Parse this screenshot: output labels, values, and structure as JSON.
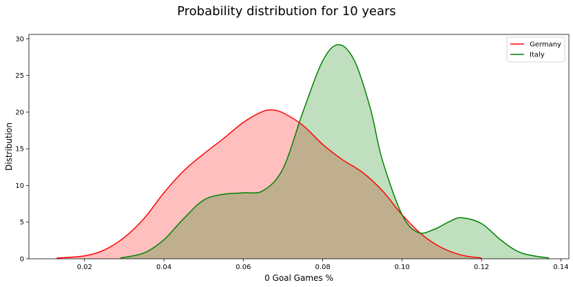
{
  "chart_data": {
    "type": "area",
    "title": "Probability distribution for 10 years",
    "xlabel": "0 Goal Games %",
    "ylabel": "Distribution",
    "xlim": [
      0.006,
      0.142
    ],
    "ylim": [
      0,
      30.6
    ],
    "xticks": [
      0.02,
      0.04,
      0.06,
      0.08,
      0.1,
      0.12,
      0.14
    ],
    "xtick_labels": [
      "0.02",
      "0.04",
      "0.06",
      "0.08",
      "0.10",
      "0.12",
      "0.14"
    ],
    "yticks": [
      0,
      5,
      10,
      15,
      20,
      25,
      30
    ],
    "ytick_labels": [
      "0",
      "5",
      "10",
      "15",
      "20",
      "25",
      "30"
    ],
    "grid": false,
    "legend": "top-right",
    "series": [
      {
        "name": "Germany",
        "color": "#ff0000",
        "fill": "#ff0000",
        "fill_opacity": 0.25,
        "x": [
          0.013,
          0.02,
          0.025,
          0.03,
          0.035,
          0.04,
          0.045,
          0.05,
          0.055,
          0.06,
          0.0645,
          0.067,
          0.07,
          0.075,
          0.08,
          0.085,
          0.09,
          0.095,
          0.1,
          0.105,
          0.11,
          0.115,
          0.12
        ],
        "y": [
          0.1,
          0.4,
          1.2,
          2.9,
          5.5,
          9.0,
          12.0,
          14.3,
          16.4,
          18.6,
          20.0,
          20.3,
          19.9,
          18.2,
          15.6,
          13.5,
          11.8,
          9.3,
          6.0,
          3.3,
          1.5,
          0.5,
          0.1
        ]
      },
      {
        "name": "Italy",
        "color": "#008000",
        "fill": "#008000",
        "fill_opacity": 0.25,
        "x": [
          0.029,
          0.035,
          0.04,
          0.045,
          0.05,
          0.055,
          0.06,
          0.065,
          0.07,
          0.075,
          0.08,
          0.084,
          0.088,
          0.092,
          0.095,
          0.1,
          0.104,
          0.108,
          0.112,
          0.115,
          0.12,
          0.125,
          0.13,
          0.137
        ],
        "y": [
          0.1,
          0.8,
          2.6,
          5.5,
          8.0,
          8.8,
          9.0,
          9.3,
          12.3,
          20.0,
          27.0,
          29.2,
          27.0,
          20.5,
          13.5,
          6.0,
          3.6,
          4.0,
          5.1,
          5.6,
          4.8,
          2.5,
          0.8,
          0.1
        ]
      }
    ]
  }
}
